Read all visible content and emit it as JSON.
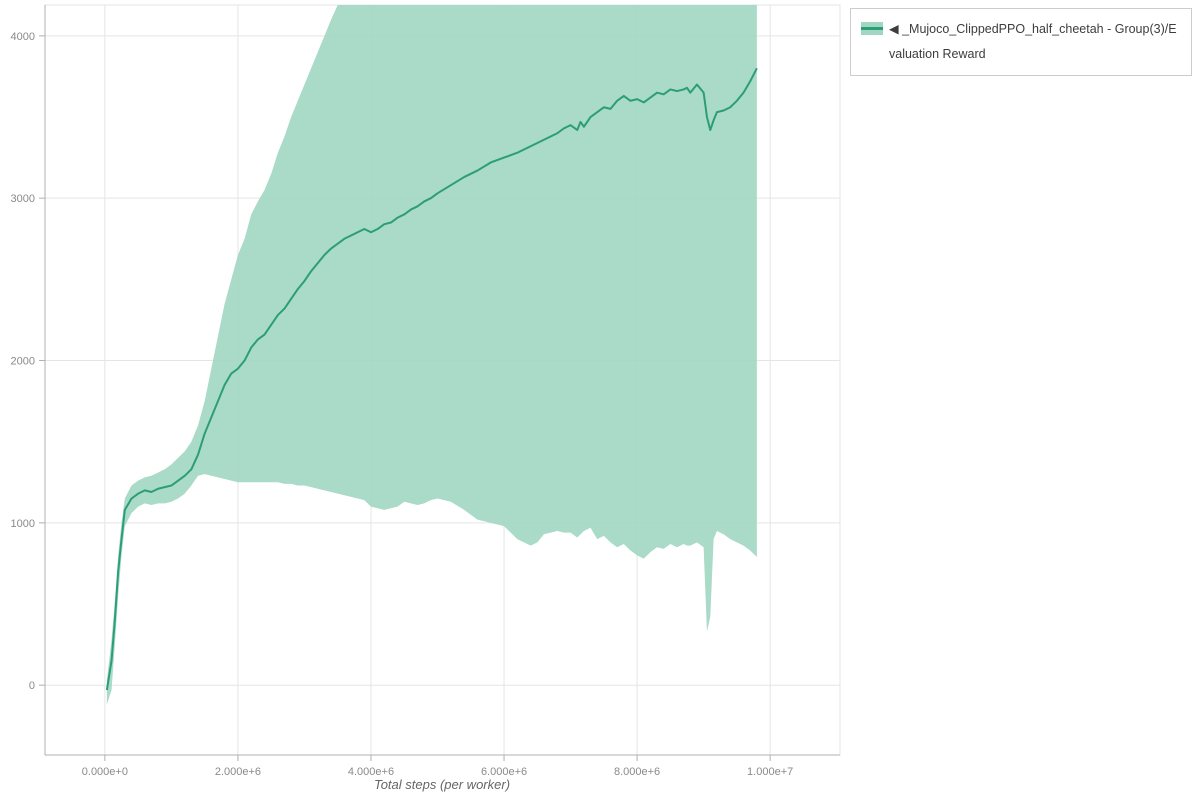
{
  "legend": {
    "items": [
      {
        "label": "◀ _Mujoco_ClippedPPO_half_cheetah - Group(3)/Evaluation Reward"
      }
    ]
  },
  "chart_data": {
    "type": "line",
    "title": "",
    "xlabel": "Total steps (per worker)",
    "ylabel": "",
    "xlim": [
      -900000,
      11050000
    ],
    "ylim": [
      -430,
      4190
    ],
    "grid": true,
    "legend_position": "top-right-outside",
    "x_ticks": {
      "values": [
        0,
        2000000,
        4000000,
        6000000,
        8000000,
        10000000
      ],
      "labels": [
        "0.000e+0",
        "2.000e+6",
        "4.000e+6",
        "6.000e+6",
        "8.000e+6",
        "1.000e+7"
      ]
    },
    "y_ticks": {
      "values": [
        0,
        1000,
        2000,
        3000,
        4000
      ],
      "labels": [
        "0",
        "1000",
        "2000",
        "3000",
        "4000"
      ]
    },
    "series": [
      {
        "name": "◀ _Mujoco_ClippedPPO_half_cheetah - Group(3)/Evaluation Reward",
        "line_color": "#2b9e78",
        "band_color": "#a1d6c2",
        "x": [
          30000,
          100000,
          150000,
          200000,
          250000,
          300000,
          400000,
          500000,
          600000,
          700000,
          800000,
          900000,
          1000000,
          1100000,
          1200000,
          1300000,
          1400000,
          1500000,
          1600000,
          1700000,
          1800000,
          1900000,
          2000000,
          2100000,
          2200000,
          2300000,
          2400000,
          2500000,
          2600000,
          2700000,
          2800000,
          2900000,
          3000000,
          3100000,
          3200000,
          3300000,
          3400000,
          3500000,
          3600000,
          3700000,
          3800000,
          3900000,
          4000000,
          4100000,
          4200000,
          4300000,
          4400000,
          4500000,
          4600000,
          4700000,
          4800000,
          4900000,
          5000000,
          5200000,
          5400000,
          5600000,
          5800000,
          6000000,
          6200000,
          6400000,
          6500000,
          6600000,
          6800000,
          6900000,
          7000000,
          7100000,
          7150000,
          7200000,
          7300000,
          7400000,
          7500000,
          7600000,
          7700000,
          7800000,
          7900000,
          8000000,
          8100000,
          8200000,
          8300000,
          8400000,
          8500000,
          8600000,
          8700000,
          8750000,
          8800000,
          8900000,
          9000000,
          9050000,
          9100000,
          9150000,
          9200000,
          9300000,
          9400000,
          9500000,
          9600000,
          9700000,
          9800000
        ],
        "mean": [
          -30,
          150,
          400,
          700,
          900,
          1080,
          1150,
          1180,
          1200,
          1190,
          1210,
          1220,
          1230,
          1260,
          1290,
          1330,
          1420,
          1550,
          1650,
          1750,
          1850,
          1920,
          1950,
          2000,
          2080,
          2130,
          2160,
          2220,
          2280,
          2320,
          2380,
          2440,
          2490,
          2550,
          2600,
          2650,
          2690,
          2720,
          2750,
          2770,
          2790,
          2810,
          2790,
          2810,
          2840,
          2850,
          2880,
          2900,
          2930,
          2950,
          2980,
          3000,
          3030,
          3080,
          3130,
          3170,
          3220,
          3250,
          3280,
          3320,
          3340,
          3360,
          3400,
          3430,
          3450,
          3420,
          3470,
          3440,
          3500,
          3530,
          3560,
          3550,
          3600,
          3630,
          3600,
          3610,
          3590,
          3620,
          3650,
          3640,
          3670,
          3660,
          3670,
          3680,
          3650,
          3700,
          3650,
          3500,
          3420,
          3480,
          3530,
          3540,
          3560,
          3600,
          3650,
          3720,
          3800
        ],
        "upper": [
          30,
          280,
          520,
          800,
          1000,
          1150,
          1230,
          1260,
          1280,
          1290,
          1310,
          1330,
          1360,
          1400,
          1440,
          1500,
          1600,
          1750,
          1950,
          2150,
          2350,
          2500,
          2650,
          2750,
          2900,
          2980,
          3050,
          3150,
          3280,
          3380,
          3500,
          3600,
          3700,
          3800,
          3900,
          4000,
          4100,
          4200,
          4300,
          4350,
          4400,
          4400,
          4400,
          4400,
          4400,
          4400,
          4400,
          4400,
          4400,
          4400,
          4400,
          4400,
          4400,
          4400,
          4400,
          4400,
          4400,
          4400,
          4400,
          4400,
          4400,
          4400,
          4400,
          4400,
          4400,
          4400,
          4400,
          4400,
          4400,
          4400,
          4400,
          4400,
          4400,
          4400,
          4400,
          4400,
          4400,
          4400,
          4400,
          4400,
          4400,
          4400,
          4400,
          4400,
          4400,
          4400,
          4400,
          4400,
          4400,
          4400,
          4400,
          4400,
          4400,
          4400,
          4400,
          4400,
          4400
        ],
        "lower": [
          -120,
          -30,
          250,
          550,
          800,
          980,
          1060,
          1100,
          1120,
          1110,
          1120,
          1120,
          1130,
          1150,
          1180,
          1230,
          1290,
          1300,
          1290,
          1280,
          1270,
          1260,
          1250,
          1250,
          1250,
          1250,
          1250,
          1250,
          1250,
          1240,
          1240,
          1230,
          1230,
          1220,
          1210,
          1200,
          1190,
          1180,
          1170,
          1160,
          1150,
          1140,
          1100,
          1090,
          1080,
          1090,
          1100,
          1130,
          1120,
          1110,
          1120,
          1140,
          1150,
          1130,
          1080,
          1020,
          1000,
          980,
          900,
          860,
          880,
          930,
          950,
          940,
          940,
          910,
          930,
          950,
          970,
          900,
          920,
          880,
          850,
          870,
          830,
          800,
          780,
          820,
          850,
          840,
          870,
          850,
          870,
          860,
          860,
          880,
          850,
          330,
          420,
          900,
          950,
          930,
          900,
          880,
          860,
          830,
          790
        ]
      }
    ]
  }
}
